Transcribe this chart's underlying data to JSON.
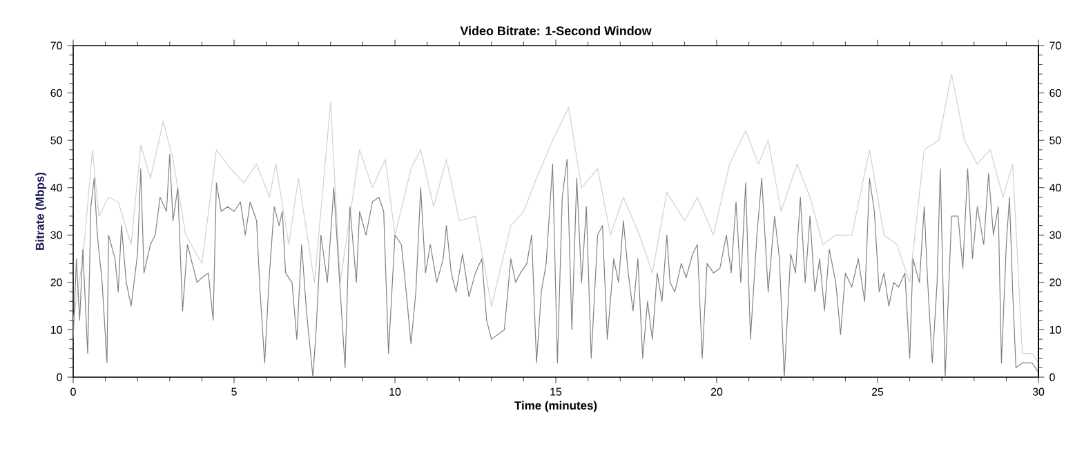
{
  "chart_data": {
    "type": "line",
    "title": "Video Bitrate: 1-Second Window",
    "xlabel": "Time (minutes)",
    "ylabel": "Bitrate (Mbps)",
    "xlim": [
      0,
      30
    ],
    "xticks": [
      0,
      5,
      10,
      15,
      20,
      25,
      30
    ],
    "ylim": [
      0,
      70
    ],
    "yticks": [
      0,
      10,
      20,
      30,
      40,
      50,
      60,
      70
    ],
    "y2lim": [
      0,
      70
    ],
    "y2ticks": [
      0,
      10,
      20,
      30,
      40,
      50,
      60,
      70
    ],
    "grid": false,
    "series": [
      {
        "color": "#d0d0d0",
        "x": [
          0,
          0.3,
          0.6,
          0.8,
          1.1,
          1.4,
          1.8,
          2.1,
          2.4,
          2.8,
          3.1,
          3.5,
          4.0,
          4.45,
          4.9,
          5.3,
          5.7,
          6.1,
          6.3,
          6.7,
          7.0,
          7.5,
          8.0,
          8.3,
          8.9,
          9.3,
          9.7,
          10.0,
          10.5,
          10.8,
          11.2,
          11.6,
          12.0,
          12.5,
          13.0,
          13.6,
          14.0,
          14.4,
          14.9,
          15.4,
          15.8,
          16.3,
          16.7,
          17.1,
          17.6,
          18.0,
          18.45,
          19.0,
          19.4,
          19.9,
          20.4,
          20.9,
          21.3,
          21.6,
          22.0,
          22.5,
          22.9,
          23.3,
          23.7,
          24.2,
          24.75,
          25.2,
          25.6,
          26.0,
          26.45,
          26.9,
          27.3,
          27.7,
          28.1,
          28.5,
          28.9,
          29.2,
          29.5,
          29.8,
          30.0
        ],
        "values": [
          12,
          25,
          48,
          34,
          38,
          37,
          28,
          49,
          42,
          54,
          46,
          30,
          24,
          48,
          44,
          41,
          45,
          38,
          45,
          28,
          42,
          20,
          58,
          20,
          48,
          40,
          46,
          30,
          44,
          48,
          36,
          46,
          33,
          34,
          15,
          32,
          35,
          42,
          50,
          57,
          40,
          44,
          30,
          38,
          30,
          22,
          39,
          33,
          38,
          30,
          45,
          52,
          45,
          50,
          35,
          45,
          38,
          28,
          30,
          30,
          48,
          30,
          28,
          20,
          48,
          50,
          64,
          50,
          45,
          48,
          38,
          45,
          5,
          5,
          3
        ]
      },
      {
        "color": "#808080",
        "x": [
          0,
          0.1,
          0.2,
          0.3,
          0.45,
          0.55,
          0.65,
          0.75,
          0.9,
          1.05,
          1.1,
          1.3,
          1.4,
          1.5,
          1.65,
          1.8,
          2.0,
          2.1,
          2.2,
          2.4,
          2.55,
          2.7,
          2.9,
          3.0,
          3.1,
          3.25,
          3.4,
          3.55,
          3.7,
          3.85,
          4.0,
          4.2,
          4.35,
          4.45,
          4.6,
          4.8,
          5.0,
          5.2,
          5.35,
          5.5,
          5.7,
          5.8,
          5.95,
          6.1,
          6.25,
          6.4,
          6.5,
          6.6,
          6.8,
          6.95,
          7.1,
          7.25,
          7.45,
          7.55,
          7.7,
          7.9,
          8.1,
          8.3,
          8.45,
          8.6,
          8.8,
          8.9,
          9.1,
          9.3,
          9.5,
          9.65,
          9.8,
          10.0,
          10.2,
          10.35,
          10.5,
          10.65,
          10.8,
          10.95,
          11.1,
          11.3,
          11.5,
          11.6,
          11.75,
          11.9,
          12.1,
          12.3,
          12.5,
          12.7,
          12.85,
          13.0,
          13.2,
          13.4,
          13.6,
          13.75,
          13.9,
          14.1,
          14.25,
          14.4,
          14.55,
          14.7,
          14.9,
          15.05,
          15.2,
          15.35,
          15.5,
          15.65,
          15.8,
          15.95,
          16.1,
          16.3,
          16.45,
          16.6,
          16.8,
          16.95,
          17.1,
          17.25,
          17.4,
          17.55,
          17.7,
          17.85,
          18.0,
          18.15,
          18.3,
          18.45,
          18.55,
          18.7,
          18.9,
          19.05,
          19.25,
          19.4,
          19.55,
          19.7,
          19.9,
          20.1,
          20.3,
          20.45,
          20.6,
          20.75,
          20.9,
          21.05,
          21.25,
          21.4,
          21.6,
          21.8,
          21.95,
          22.1,
          22.3,
          22.45,
          22.6,
          22.75,
          22.9,
          23.05,
          23.2,
          23.35,
          23.5,
          23.7,
          23.85,
          24.0,
          24.2,
          24.4,
          24.6,
          24.75,
          24.9,
          25.05,
          25.2,
          25.35,
          25.5,
          25.65,
          25.85,
          26.0,
          26.1,
          26.3,
          26.45,
          26.55,
          26.7,
          26.85,
          26.95,
          27.1,
          27.3,
          27.5,
          27.65,
          27.8,
          27.95,
          28.1,
          28.3,
          28.45,
          28.6,
          28.75,
          28.85,
          29.0,
          29.1,
          29.2,
          29.3,
          29.5,
          29.8,
          30.0
        ],
        "values": [
          8,
          25,
          12,
          27,
          5,
          36,
          42,
          30,
          20,
          3,
          30,
          25,
          18,
          32,
          20,
          15,
          26,
          44,
          22,
          28,
          30,
          38,
          35,
          47,
          33,
          40,
          14,
          28,
          24,
          20,
          21,
          22,
          12,
          41,
          35,
          36,
          35,
          37,
          30,
          37,
          33,
          19,
          3,
          22,
          36,
          32,
          35,
          22,
          20,
          8,
          28,
          14,
          0,
          10,
          30,
          20,
          40,
          18,
          2,
          36,
          20,
          35,
          30,
          37,
          38,
          35,
          5,
          30,
          28,
          18,
          7,
          18,
          40,
          22,
          28,
          20,
          25,
          32,
          22,
          18,
          26,
          17,
          22,
          25,
          12,
          8,
          9,
          10,
          25,
          20,
          22,
          24,
          30,
          3,
          18,
          24,
          45,
          3,
          38,
          46,
          10,
          42,
          20,
          36,
          4,
          30,
          32,
          8,
          25,
          20,
          33,
          22,
          14,
          25,
          4,
          16,
          8,
          22,
          16,
          30,
          20,
          18,
          24,
          21,
          26,
          28,
          4,
          24,
          22,
          23,
          30,
          22,
          37,
          20,
          41,
          8,
          30,
          42,
          18,
          34,
          25,
          0,
          26,
          22,
          38,
          20,
          34,
          18,
          25,
          14,
          27,
          20,
          9,
          22,
          19,
          25,
          16,
          42,
          35,
          18,
          22,
          15,
          20,
          19,
          22,
          4,
          25,
          20,
          36,
          21,
          3,
          20,
          44,
          0,
          34,
          34,
          23,
          44,
          25,
          36,
          28,
          43,
          30,
          36,
          3,
          28,
          38,
          18,
          2,
          3,
          3,
          1
        ]
      }
    ]
  }
}
